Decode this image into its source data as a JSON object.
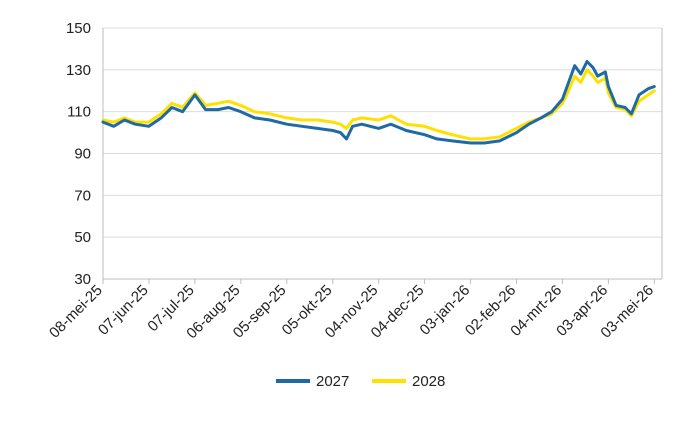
{
  "chart_data": {
    "type": "line",
    "title": "",
    "xlabel": "",
    "ylabel": "",
    "ylim": [
      30,
      150
    ],
    "yticks": [
      30,
      50,
      70,
      90,
      110,
      130,
      150
    ],
    "xlim": [
      "2025-05-08",
      "2026-05-08"
    ],
    "xtick_labels": [
      "08-mei-25",
      "07-jun-25",
      "07-jul-25",
      "06-aug-25",
      "05-sep-25",
      "05-okt-25",
      "04-nov-25",
      "04-dec-25",
      "03-jan-26",
      "02-feb-26",
      "04-mrt-26",
      "03-apr-26",
      "03-mei-26"
    ],
    "xtick_dates": [
      "2025-05-08",
      "2025-06-07",
      "2025-07-07",
      "2025-08-06",
      "2025-09-05",
      "2025-10-05",
      "2025-11-04",
      "2025-12-04",
      "2026-01-03",
      "2026-02-02",
      "2026-03-04",
      "2026-04-03",
      "2026-05-03"
    ],
    "grid": "horizontal",
    "legend_position": "bottom",
    "series": [
      {
        "name": "2027",
        "color": "#1f6aa5",
        "points": [
          [
            "2025-05-08",
            105
          ],
          [
            "2025-05-15",
            103
          ],
          [
            "2025-05-22",
            106
          ],
          [
            "2025-05-29",
            104
          ],
          [
            "2025-06-07",
            103
          ],
          [
            "2025-06-15",
            107
          ],
          [
            "2025-06-22",
            112
          ],
          [
            "2025-06-29",
            110
          ],
          [
            "2025-07-07",
            118
          ],
          [
            "2025-07-14",
            111
          ],
          [
            "2025-07-22",
            111
          ],
          [
            "2025-07-29",
            112
          ],
          [
            "2025-08-06",
            110
          ],
          [
            "2025-08-15",
            107
          ],
          [
            "2025-08-25",
            106
          ],
          [
            "2025-09-05",
            104
          ],
          [
            "2025-09-15",
            103
          ],
          [
            "2025-09-25",
            102
          ],
          [
            "2025-10-05",
            101
          ],
          [
            "2025-10-10",
            100
          ],
          [
            "2025-10-14",
            97
          ],
          [
            "2025-10-18",
            103
          ],
          [
            "2025-10-24",
            104
          ],
          [
            "2025-11-04",
            102
          ],
          [
            "2025-11-12",
            104
          ],
          [
            "2025-11-22",
            101
          ],
          [
            "2025-12-04",
            99
          ],
          [
            "2025-12-12",
            97
          ],
          [
            "2025-12-22",
            96
          ],
          [
            "2026-01-03",
            95
          ],
          [
            "2026-01-12",
            95
          ],
          [
            "2026-01-22",
            96
          ],
          [
            "2026-02-02",
            100
          ],
          [
            "2026-02-10",
            104
          ],
          [
            "2026-02-18",
            107
          ],
          [
            "2026-02-25",
            110
          ],
          [
            "2026-03-04",
            116
          ],
          [
            "2026-03-08",
            124
          ],
          [
            "2026-03-12",
            132
          ],
          [
            "2026-03-16",
            128
          ],
          [
            "2026-03-20",
            134
          ],
          [
            "2026-03-24",
            131
          ],
          [
            "2026-03-27",
            127
          ],
          [
            "2026-04-01",
            129
          ],
          [
            "2026-04-03",
            122
          ],
          [
            "2026-04-08",
            113
          ],
          [
            "2026-04-14",
            112
          ],
          [
            "2026-04-18",
            109
          ],
          [
            "2026-04-23",
            118
          ],
          [
            "2026-04-29",
            121
          ],
          [
            "2026-05-03",
            122
          ]
        ]
      },
      {
        "name": "2028",
        "color": "#ffe000",
        "points": [
          [
            "2025-05-08",
            106
          ],
          [
            "2025-05-15",
            105
          ],
          [
            "2025-05-22",
            107
          ],
          [
            "2025-05-29",
            105
          ],
          [
            "2025-06-07",
            105
          ],
          [
            "2025-06-15",
            109
          ],
          [
            "2025-06-22",
            114
          ],
          [
            "2025-06-29",
            112
          ],
          [
            "2025-07-07",
            119
          ],
          [
            "2025-07-14",
            113
          ],
          [
            "2025-07-22",
            114
          ],
          [
            "2025-07-29",
            115
          ],
          [
            "2025-08-06",
            113
          ],
          [
            "2025-08-15",
            110
          ],
          [
            "2025-08-25",
            109
          ],
          [
            "2025-09-05",
            107
          ],
          [
            "2025-09-15",
            106
          ],
          [
            "2025-09-25",
            106
          ],
          [
            "2025-10-05",
            105
          ],
          [
            "2025-10-10",
            104
          ],
          [
            "2025-10-14",
            102
          ],
          [
            "2025-10-18",
            106
          ],
          [
            "2025-10-24",
            107
          ],
          [
            "2025-11-04",
            106
          ],
          [
            "2025-11-12",
            108
          ],
          [
            "2025-11-22",
            104
          ],
          [
            "2025-12-04",
            103
          ],
          [
            "2025-12-12",
            101
          ],
          [
            "2025-12-22",
            99
          ],
          [
            "2026-01-03",
            97
          ],
          [
            "2026-01-12",
            97
          ],
          [
            "2026-01-22",
            98
          ],
          [
            "2026-02-02",
            102
          ],
          [
            "2026-02-10",
            105
          ],
          [
            "2026-02-18",
            107
          ],
          [
            "2026-02-25",
            109
          ],
          [
            "2026-03-04",
            114
          ],
          [
            "2026-03-08",
            120
          ],
          [
            "2026-03-12",
            127
          ],
          [
            "2026-03-16",
            124
          ],
          [
            "2026-03-20",
            130
          ],
          [
            "2026-03-24",
            127
          ],
          [
            "2026-03-27",
            124
          ],
          [
            "2026-04-01",
            126
          ],
          [
            "2026-04-03",
            119
          ],
          [
            "2026-04-08",
            112
          ],
          [
            "2026-04-14",
            111
          ],
          [
            "2026-04-18",
            108
          ],
          [
            "2026-04-23",
            115
          ],
          [
            "2026-04-29",
            118
          ],
          [
            "2026-05-03",
            120
          ]
        ]
      }
    ]
  }
}
